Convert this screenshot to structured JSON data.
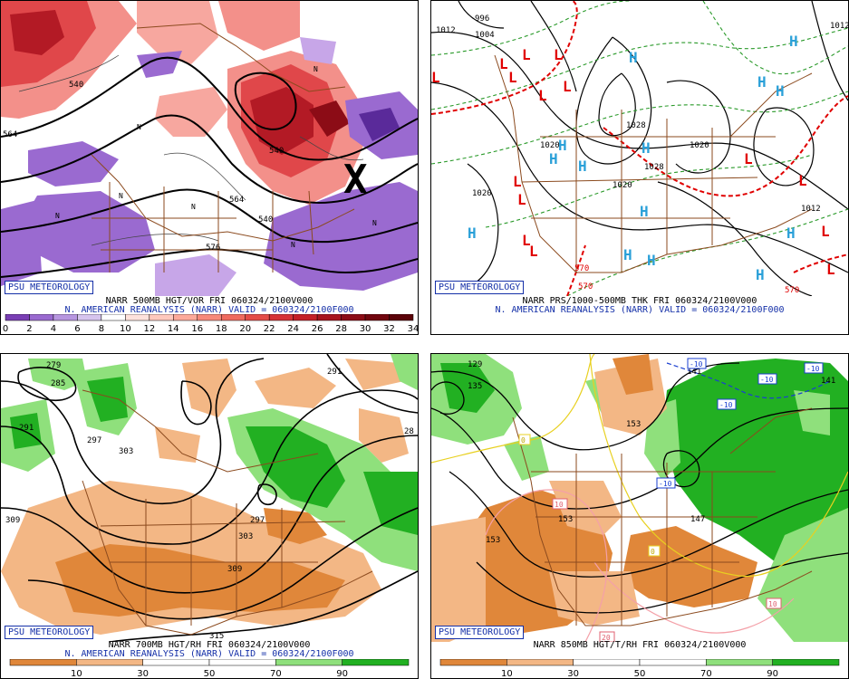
{
  "panels": [
    {
      "badge": "PSU METEOROLOGY",
      "title": "NARR 500MB HGT/VOR FRI 060324/2100V000",
      "subtitle": "N. AMERICAN REANALYSIS (NARR) VALID = 060324/2100F000",
      "contour_labels": [
        "564",
        "540",
        "540",
        "564",
        "576",
        "540"
      ],
      "symbols": [
        "N",
        "N",
        "N",
        "N",
        "N",
        "N",
        "N",
        "X"
      ],
      "colorbar": {
        "ticks": [
          "0",
          "2",
          "4",
          "6",
          "8",
          "10",
          "12",
          "14",
          "16",
          "18",
          "20",
          "22",
          "24",
          "26",
          "28",
          "30",
          "32",
          "34"
        ],
        "colors": [
          "#7a3fb5",
          "#9a6ad0",
          "#b796e0",
          "#d6c4ee",
          "#ffffff",
          "#ffe2dc",
          "#ffc8bd",
          "#fca99a",
          "#f7897a",
          "#ef6a5f",
          "#e44c48",
          "#d63236",
          "#c41f28",
          "#a8141e",
          "#8c0c16",
          "#72060f",
          "#5c0309"
        ]
      }
    },
    {
      "badge": "PSU METEOROLOGY",
      "title": "NARR PRS/1000-500MB THK FRI 060324/2100V000",
      "subtitle": "N. AMERICAN REANALYSIS (NARR) VALID = 060324/2100F000",
      "isobar_labels": [
        "1012",
        "1004",
        "996",
        "1020",
        "1028",
        "1028",
        "1020",
        "1020",
        "1012",
        "1020",
        "1012"
      ],
      "thickness_labels": [
        "570",
        "570",
        "570"
      ],
      "highs": [
        "H",
        "H",
        "H",
        "H",
        "H",
        "H",
        "H",
        "H",
        "H",
        "H",
        "H",
        "H",
        "H",
        "H"
      ],
      "lows": [
        "L",
        "L",
        "L",
        "L",
        "L",
        "L",
        "L",
        "L",
        "L",
        "L",
        "L",
        "L",
        "L",
        "L",
        "L"
      ]
    },
    {
      "badge": "PSU METEOROLOGY",
      "title": "NARR 700MB HGT/RH FRI 060324/2100V000",
      "subtitle": "N. AMERICAN REANALYSIS (NARR) VALID = 060324/2100F000",
      "contour_labels": [
        "279",
        "285",
        "291",
        "297",
        "303",
        "309",
        "297",
        "303",
        "309",
        "315",
        "291",
        "28"
      ],
      "colorbar": {
        "ticks": [
          "10",
          "30",
          "50",
          "70",
          "90"
        ],
        "colors": [
          "#e0873a",
          "#f3b785",
          "#ffffff",
          "#ffffff",
          "#8fe07c",
          "#22b022"
        ]
      }
    },
    {
      "badge": "PSU METEOROLOGY",
      "title": "NARR 850MB HGT/T/RH FRI 060324/2100V000",
      "subtitle": "N. AMERICAN REANALYSIS (NARR) VALID = 060324/2100F000",
      "contour_labels": [
        "129",
        "135",
        "141",
        "141",
        "153",
        "153",
        "153",
        "147"
      ],
      "temp_labels": [
        "-10",
        "-10",
        "-10",
        "-10",
        "-10",
        "0",
        "0",
        "10",
        "10",
        "20"
      ],
      "colorbar": {
        "ticks": [
          "10",
          "30",
          "50",
          "70",
          "90"
        ],
        "colors": [
          "#e0873a",
          "#f3b785",
          "#ffffff",
          "#ffffff",
          "#8fe07c",
          "#22b022"
        ]
      }
    }
  ]
}
